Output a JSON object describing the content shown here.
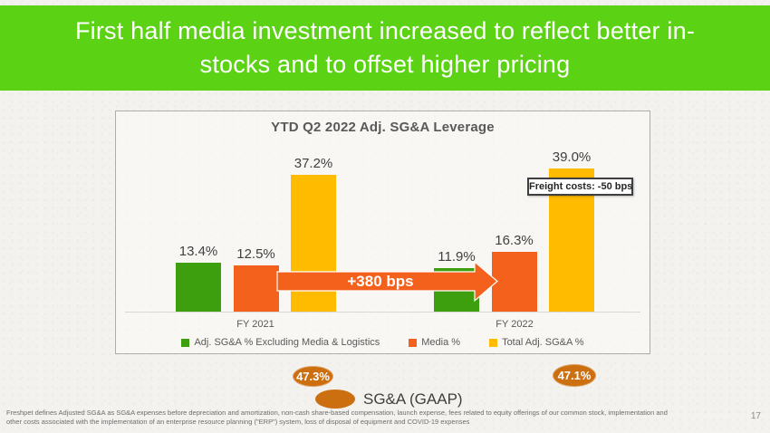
{
  "slide": {
    "title_lines": [
      "First half media investment increased to reflect better in-",
      "stocks and to offset higher pricing"
    ],
    "header_color": "#5bd214",
    "footnote_lines": [
      "Freshpet defines Adjusted SG&A as SG&A expenses before depreciation and amortization, non-cash share-based compensation, launch expense, fees related to equity offerings of our common stock, implementation and",
      "other costs associated with the implementation of an enterprise resource planning (\"ERP\") system, loss of disposal of equipment and COVID-19 expenses"
    ],
    "page_number": "17"
  },
  "chart_data": {
    "type": "bar",
    "title": "YTD Q2 2022 Adj. SG&A Leverage",
    "categories": [
      "FY 2021",
      "FY 2022"
    ],
    "series": [
      {
        "name": "Adj. SG&A % Excluding Media & Logistics",
        "color": "#3d9e0e",
        "values": [
          13.4,
          11.9
        ]
      },
      {
        "name": "Media %",
        "color": "#f4611c",
        "values": [
          12.5,
          16.3
        ]
      },
      {
        "name": "Total Adj. SG&A %",
        "color": "#ffbb00",
        "values": [
          37.2,
          39.0
        ]
      }
    ],
    "data_labels": [
      [
        "13.4%",
        "11.9%"
      ],
      [
        "12.5%",
        "16.3%"
      ],
      [
        "37.2%",
        "39.0%"
      ]
    ],
    "ylim": [
      0,
      45
    ],
    "grid": false,
    "legend_position": "bottom",
    "annotations": {
      "arrow": {
        "label": "+380 bps",
        "color": "#f4611c",
        "series": "Media %",
        "from": "FY 2021",
        "to": "FY 2022"
      },
      "callout": {
        "label": "Freight costs: -50 bps",
        "attached_to": "Total Adj. SG&A % FY 2022"
      }
    }
  },
  "gaap": {
    "label": "SG&A (GAAP)",
    "values": [
      "47.3%",
      "47.1%"
    ],
    "color": "#cc6f10"
  }
}
